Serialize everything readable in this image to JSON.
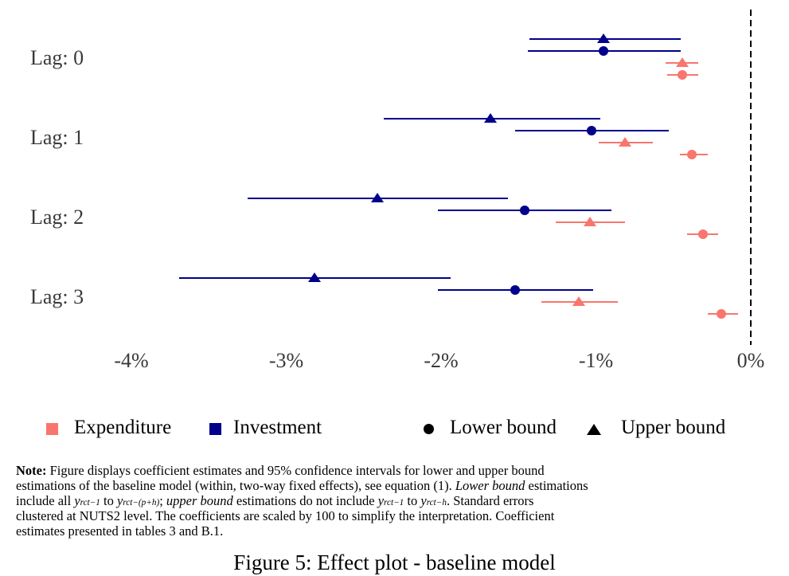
{
  "figure": {
    "caption": "Figure 5: Effect plot - baseline model"
  },
  "chart_data": {
    "type": "scatter",
    "title": "Effect plot - baseline model",
    "orientation": "horizontal",
    "groups": [
      "Lag: 0",
      "Lag: 1",
      "Lag: 2",
      "Lag: 3"
    ],
    "x_ticks": [
      {
        "value": -4,
        "label": "-4%"
      },
      {
        "value": -3,
        "label": "-3%"
      },
      {
        "value": -2,
        "label": "-2%"
      },
      {
        "value": -1,
        "label": "-1%"
      },
      {
        "value": 0,
        "label": "0%"
      }
    ],
    "xlim": [
      -4.35,
      0.25
    ],
    "grid": false,
    "reference_line_value": 0,
    "series": [
      {
        "name": "Investment",
        "bound": "Upper bound",
        "marker": "triangle",
        "color": "#00008B",
        "values": [
          -0.95,
          -1.68,
          -2.41,
          -2.82
        ],
        "ci_low": [
          -1.43,
          -2.37,
          -3.25,
          -3.69
        ],
        "ci_high": [
          -0.45,
          -0.97,
          -1.57,
          -1.94
        ]
      },
      {
        "name": "Investment",
        "bound": "Lower bound",
        "marker": "circle",
        "color": "#00008B",
        "values": [
          -0.95,
          -1.03,
          -1.46,
          -1.52
        ],
        "ci_low": [
          -1.44,
          -1.52,
          -2.02,
          -2.02
        ],
        "ci_high": [
          -0.45,
          -0.53,
          -0.9,
          -1.02
        ]
      },
      {
        "name": "Expenditure",
        "bound": "Upper bound",
        "marker": "triangle",
        "color": "#F8766D",
        "values": [
          -0.44,
          -0.81,
          -1.04,
          -1.11
        ],
        "ci_low": [
          -0.55,
          -0.98,
          -1.26,
          -1.35
        ],
        "ci_high": [
          -0.34,
          -0.63,
          -0.81,
          -0.86
        ]
      },
      {
        "name": "Expenditure",
        "bound": "Lower bound",
        "marker": "circle",
        "color": "#F8766D",
        "values": [
          -0.44,
          -0.38,
          -0.31,
          -0.19
        ],
        "ci_low": [
          -0.54,
          -0.46,
          -0.41,
          -0.28
        ],
        "ci_high": [
          -0.34,
          -0.28,
          -0.21,
          -0.08
        ]
      }
    ]
  },
  "legend": {
    "items": [
      {
        "label": "Expenditure",
        "swatch": "square",
        "color": "#F8766D"
      },
      {
        "label": "Investment",
        "swatch": "square",
        "color": "#00008B"
      },
      {
        "label": "Lower bound",
        "swatch": "circle",
        "color": "#000000"
      },
      {
        "label": "Upper bound",
        "swatch": "triangle",
        "color": "#000000"
      }
    ]
  },
  "note": {
    "lines": [
      [
        {
          "bold": true,
          "text": "Note:"
        },
        {
          "text": " Figure displays coefficient estimates and 95% confidence intervals for lower and upper bound"
        }
      ],
      [
        {
          "text": "estimations of the baseline model (within, two-way fixed effects), see equation (1). "
        },
        {
          "italic": true,
          "text": "Lower bound"
        },
        {
          "text": " estimations"
        }
      ],
      [
        {
          "text": "include all "
        },
        {
          "italic": true,
          "text": "y",
          "sub": "rct−1"
        },
        {
          "text": " to "
        },
        {
          "italic": true,
          "text": "y",
          "sub": "rct−(p+h)"
        },
        {
          "text": "; "
        },
        {
          "italic": true,
          "text": "upper bound"
        },
        {
          "text": " estimations do not include "
        },
        {
          "italic": true,
          "text": "y",
          "sub": "rct−1"
        },
        {
          "text": " to "
        },
        {
          "italic": true,
          "text": "y",
          "sub": "rct−h"
        },
        {
          "text": ". Standard errors"
        }
      ],
      [
        {
          "text": "clustered at NUTS2 level. The coefficients are scaled by 100 to simplify the interpretation. Coefficient"
        }
      ],
      [
        {
          "text": "estimates presented in tables 3 and B.1."
        }
      ]
    ]
  }
}
